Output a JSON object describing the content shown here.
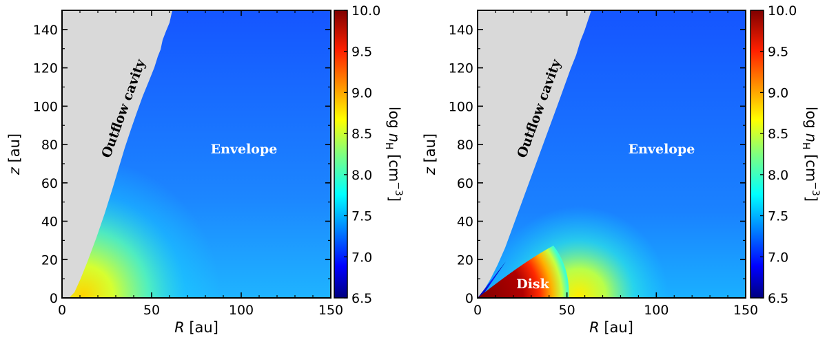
{
  "chart_data": [
    {
      "type": "heatmap",
      "panel": "left",
      "xlabel_var": "R",
      "xlabel_unit": " [au]",
      "ylabel_var": "z",
      "ylabel_unit": " [au]",
      "xlim": [
        0,
        150
      ],
      "ylim": [
        0,
        150
      ],
      "xticks": [
        "0",
        "50",
        "100",
        "150"
      ],
      "yticks": [
        "0",
        "20",
        "40",
        "60",
        "80",
        "100",
        "120",
        "140"
      ],
      "colorbar": {
        "label_prefix": "log ",
        "label_var": "n",
        "label_sub": "H",
        "label_unit": " [cm",
        "label_exp": "−3",
        "label_close": "]",
        "range": [
          6.5,
          10.0
        ],
        "ticks": [
          "6.5",
          "7.0",
          "7.5",
          "8.0",
          "8.5",
          "9.0",
          "9.5",
          "10.0"
        ]
      },
      "regions": {
        "outflow": "Outflow cavity",
        "envelope": "Envelope"
      },
      "cavity_boundary_au": {
        "R_at_z0": 4,
        "R_at_z150": 61
      }
    },
    {
      "type": "heatmap",
      "panel": "right",
      "xlabel_var": "R",
      "xlabel_unit": " [au]",
      "ylabel_var": "z",
      "ylabel_unit": " [au]",
      "xlim": [
        0,
        150
      ],
      "ylim": [
        0,
        150
      ],
      "xticks": [
        "0",
        "50",
        "100",
        "150"
      ],
      "yticks": [
        "0",
        "20",
        "40",
        "60",
        "80",
        "100",
        "120",
        "140"
      ],
      "colorbar": {
        "label_prefix": "log ",
        "label_var": "n",
        "label_sub": "H",
        "label_unit": " [cm",
        "label_exp": "−3",
        "label_close": "]",
        "range": [
          6.5,
          10.0
        ],
        "ticks": [
          "6.5",
          "7.0",
          "7.5",
          "8.0",
          "8.5",
          "9.0",
          "9.5",
          "10.0"
        ]
      },
      "regions": {
        "outflow": "Outflow cavity",
        "envelope": "Envelope",
        "disk": "Disk"
      },
      "disk_radius_au": 50,
      "cavity_boundary_au": {
        "R_at_z0": 0,
        "R_at_z150": 61
      }
    }
  ],
  "colors": {
    "cavity": "#d9d9d9",
    "envelope": "#1558ff",
    "cmap": [
      "#00007f",
      "#0000ff",
      "#007fff",
      "#00ffff",
      "#7fff7f",
      "#ffff00",
      "#ff7f00",
      "#ff0000",
      "#7f0000"
    ]
  }
}
